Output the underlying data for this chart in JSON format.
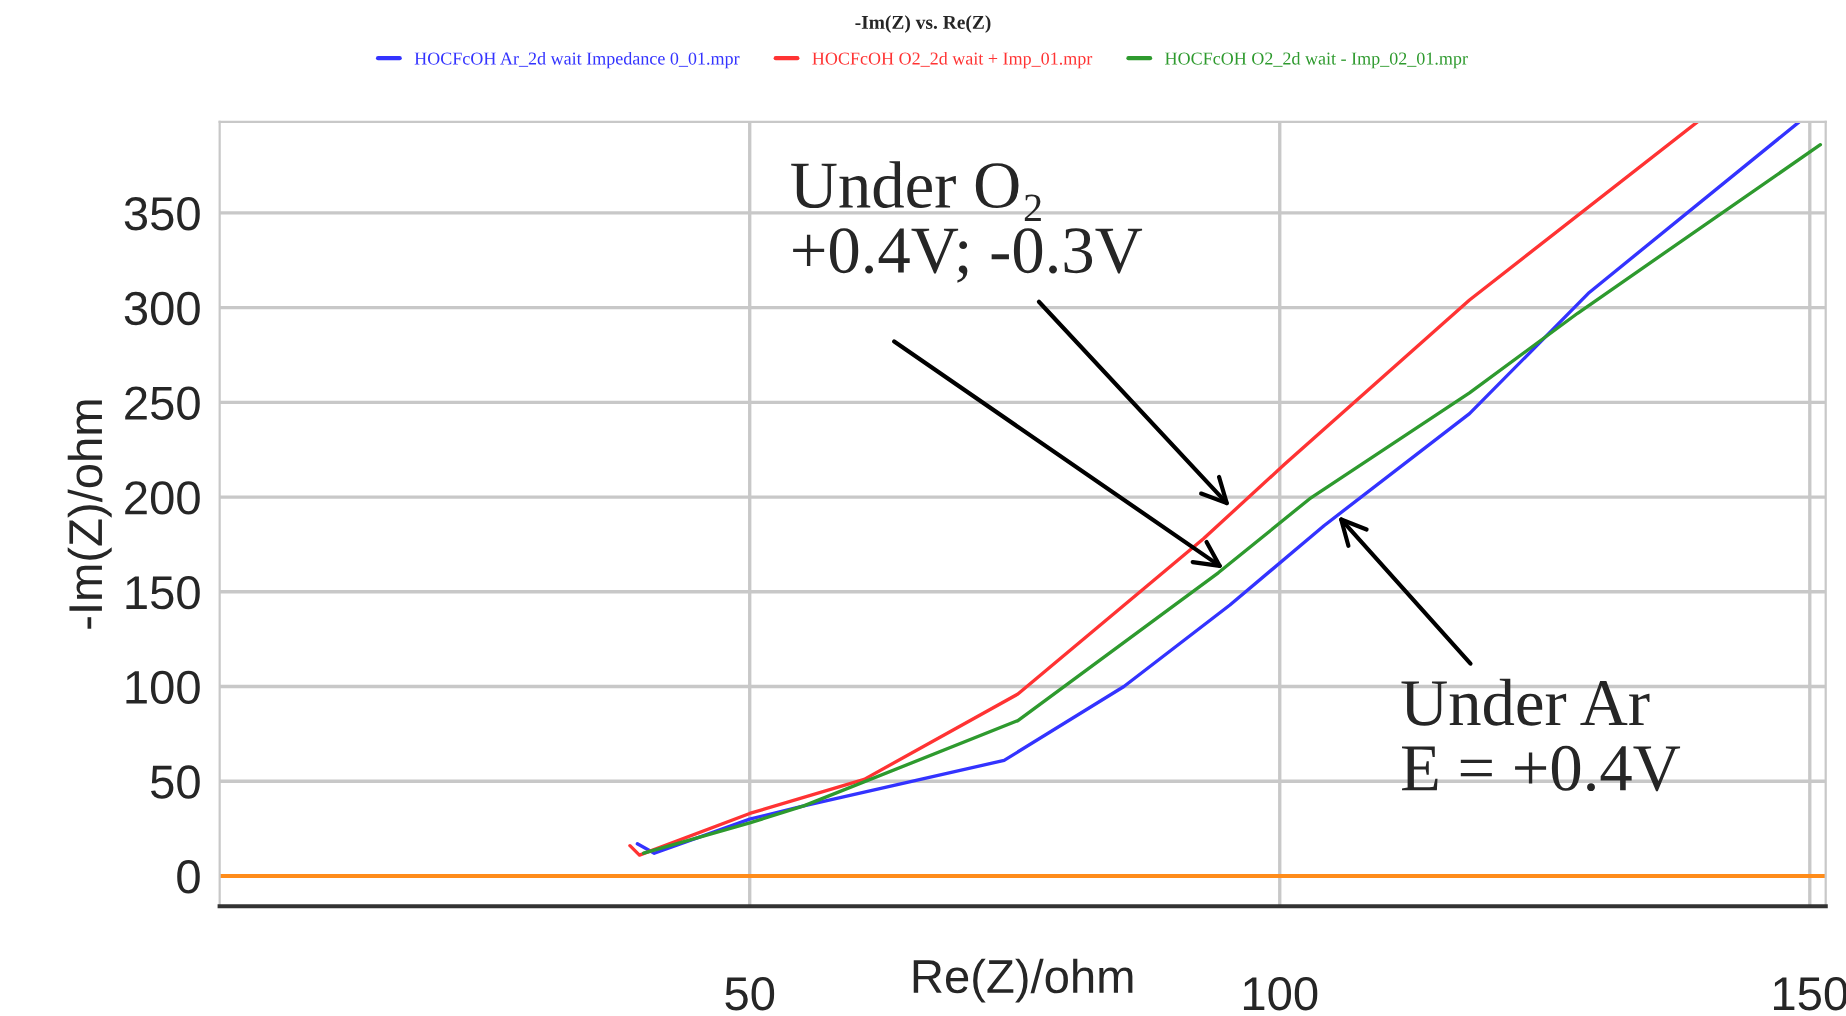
{
  "chart_data": {
    "type": "line",
    "title": "-Im(Z) vs. Re(Z)",
    "xlabel": "Re(Z)/ohm",
    "ylabel": "-Im(Z)/ohm",
    "xlim": [
      0,
      151.5
    ],
    "xticks": [
      50,
      100,
      150
    ],
    "ylim": [
      -16,
      398
    ],
    "yticks": [
      0,
      50,
      100,
      150,
      200,
      250,
      300,
      350
    ],
    "grid": true,
    "legend": "top",
    "marker": "none",
    "line_style": "solid",
    "ref_lines": [
      {
        "axis": "y",
        "value": 0,
        "color": "#ff8c1a"
      }
    ],
    "annotations": [
      {
        "text": "Under O₂\n+0.4V; -0.3V",
        "x": 95.3,
        "y": 195
      },
      {
        "text": "Under Ar\nE = +0.4V",
        "x": 105.5,
        "y": 190
      }
    ],
    "series": [
      {
        "name": "HOCFcOH Ar_2d wait Impedance 0_01.mpr",
        "color": "#3333ff",
        "x": [
          39.4,
          41,
          50,
          55.1,
          74,
          85.3,
          95.3,
          104.2,
          117.9,
          129.2,
          149
        ],
        "values": [
          17,
          12,
          30,
          37,
          61,
          100,
          143,
          185,
          244,
          308,
          398
        ]
      },
      {
        "name": "HOCFcOH O2_2d wait + Imp_01.mpr",
        "color": "#ff3333",
        "x": [
          38.7,
          39.6,
          50,
          60.8,
          75.3,
          92.8,
          100.4,
          117.9,
          139.4
        ],
        "values": [
          16,
          11,
          33,
          51,
          96,
          178,
          217,
          304,
          398
        ]
      },
      {
        "name": "HOCFcOH O2_2d wait - Imp_02_01.mpr",
        "color": "#2e9a2e",
        "x": [
          40,
          50,
          55.1,
          75.3,
          94.2,
          102.8,
          117.9,
          128.1,
          151
        ],
        "values": [
          12,
          28,
          37,
          82,
          160,
          199,
          255,
          297,
          386
        ]
      }
    ]
  }
}
